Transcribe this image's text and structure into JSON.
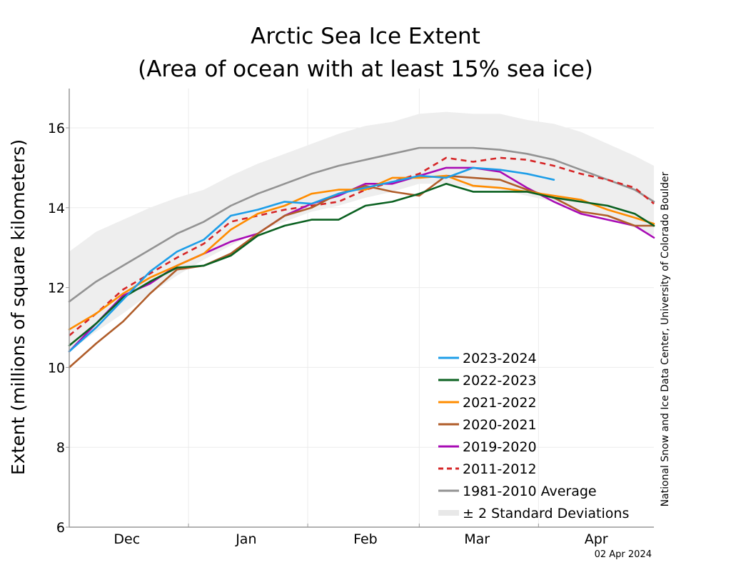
{
  "chart_data": {
    "type": "line",
    "title": [
      "Arctic Sea Ice Extent",
      "(Area of ocean with at least 15% sea ice)"
    ],
    "xlabel": "",
    "ylabel": "Extent (millions of square kilometers)",
    "ylim": [
      6,
      17
    ],
    "yticks": [
      6,
      8,
      10,
      12,
      14,
      16
    ],
    "x_unit": "days since Dec 1",
    "xlim": [
      0,
      152
    ],
    "xticks": [
      {
        "label": "Dec",
        "day": 15
      },
      {
        "label": "Jan",
        "day": 46
      },
      {
        "label": "Feb",
        "day": 77
      },
      {
        "label": "Mar",
        "day": 106
      },
      {
        "label": "Apr",
        "day": 137
      }
    ],
    "month_gridlines_days": [
      31,
      62,
      91,
      122
    ],
    "grid": true,
    "credit": "National Snow and Ice Data Center, University of Colorado Boulder",
    "date_label": "02 Apr 2024",
    "legend_position": "bottom-right",
    "x": [
      0,
      7,
      14,
      21,
      28,
      35,
      42,
      49,
      56,
      63,
      70,
      77,
      84,
      91,
      98,
      105,
      112,
      119,
      126,
      133,
      140,
      147,
      152
    ],
    "band": {
      "name": "± 2 Standard Deviations",
      "color": "#eeeeee",
      "upper": [
        12.9,
        13.4,
        13.7,
        14.0,
        14.25,
        14.45,
        14.8,
        15.1,
        15.35,
        15.6,
        15.85,
        16.05,
        16.15,
        16.35,
        16.4,
        16.35,
        16.35,
        16.2,
        16.1,
        15.9,
        15.6,
        15.3,
        15.05
      ],
      "lower": [
        10.4,
        10.9,
        11.35,
        11.85,
        12.3,
        12.7,
        13.05,
        13.4,
        13.65,
        13.9,
        14.05,
        14.25,
        14.4,
        14.6,
        14.6,
        14.5,
        14.45,
        14.3,
        14.15,
        13.95,
        13.75,
        13.5,
        13.3
      ]
    },
    "series": [
      {
        "name": "2023-2024",
        "color": "#1e9ee8",
        "dash": false,
        "values": [
          10.4,
          11.0,
          11.7,
          12.4,
          12.9,
          13.2,
          13.8,
          13.95,
          14.15,
          14.1,
          14.35,
          14.5,
          14.65,
          14.8,
          14.75,
          15.0,
          14.95,
          14.85,
          14.7,
          null,
          null,
          null,
          null
        ]
      },
      {
        "name": "2022-2023",
        "color": "#0b6121",
        "dash": false,
        "values": [
          10.55,
          11.1,
          11.75,
          12.15,
          12.5,
          12.55,
          12.8,
          13.3,
          13.55,
          13.7,
          13.7,
          14.05,
          14.15,
          14.35,
          14.6,
          14.4,
          14.4,
          14.4,
          14.25,
          14.15,
          14.05,
          13.85,
          13.55
        ]
      },
      {
        "name": "2021-2022",
        "color": "#ff8c00",
        "dash": false,
        "values": [
          10.95,
          11.35,
          11.85,
          12.25,
          12.55,
          12.85,
          13.45,
          13.85,
          14.05,
          14.35,
          14.45,
          14.45,
          14.75,
          14.75,
          14.8,
          14.55,
          14.5,
          14.4,
          14.3,
          14.2,
          13.95,
          13.75,
          13.6
        ]
      },
      {
        "name": "2020-2021",
        "color": "#b05d2a",
        "dash": false,
        "values": [
          10.0,
          10.6,
          11.15,
          11.85,
          12.45,
          12.55,
          12.85,
          13.35,
          13.8,
          14.0,
          14.35,
          14.55,
          14.4,
          14.3,
          14.8,
          14.75,
          14.7,
          14.45,
          14.25,
          13.9,
          13.8,
          13.55,
          13.55
        ]
      },
      {
        "name": "2019-2020",
        "color": "#a80cb5",
        "dash": false,
        "values": [
          10.4,
          11.1,
          11.8,
          12.1,
          12.55,
          12.85,
          13.15,
          13.35,
          13.8,
          14.1,
          14.3,
          14.6,
          14.6,
          14.8,
          15.0,
          15.0,
          14.9,
          14.5,
          14.15,
          13.85,
          13.7,
          13.55,
          13.25
        ]
      },
      {
        "name": "2011-2012",
        "color": "#d62728",
        "dash": true,
        "values": [
          10.8,
          11.35,
          11.95,
          12.35,
          12.75,
          13.1,
          13.65,
          13.8,
          13.95,
          14.05,
          14.15,
          14.45,
          14.65,
          14.85,
          15.25,
          15.15,
          15.25,
          15.2,
          15.05,
          14.85,
          14.7,
          14.5,
          14.1
        ]
      },
      {
        "name": "1981-2010 Average",
        "color": "#939393",
        "dash": false,
        "values": [
          11.65,
          12.15,
          12.55,
          12.95,
          13.35,
          13.65,
          14.05,
          14.35,
          14.6,
          14.85,
          15.05,
          15.2,
          15.35,
          15.5,
          15.5,
          15.5,
          15.45,
          15.35,
          15.2,
          14.95,
          14.7,
          14.45,
          14.15
        ]
      }
    ]
  }
}
